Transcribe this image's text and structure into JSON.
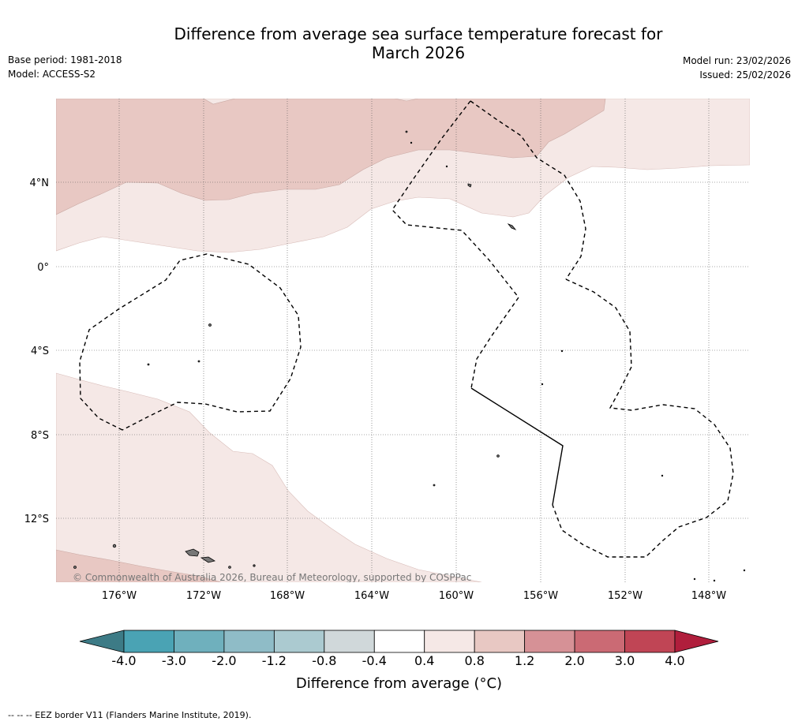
{
  "title_line1": "Difference from average sea surface temperature forecast for",
  "title_line2": "March 2026",
  "meta_left": {
    "base_period": "Base period: 1981-2018",
    "model": "Model: ACCESS-S2"
  },
  "meta_right": {
    "model_run": "Model run: 23/02/2026",
    "issued": "Issued: 25/02/2026"
  },
  "map": {
    "lat_labels": [
      "4°N",
      "0°",
      "4°S",
      "8°S",
      "12°S"
    ],
    "lon_labels": [
      "176°W",
      "172°W",
      "168°W",
      "164°W",
      "160°W",
      "156°W",
      "152°W",
      "148°W"
    ],
    "copyright": "© Commonwealth of Australia 2026, Bureau of Meteorology, supported by COSPPac",
    "colors": {
      "band_0_4": "#f5e8e6",
      "band_0_8": "#e8c8c3",
      "eez": "#000000"
    }
  },
  "colorbar": {
    "ticks": [
      "-4.0",
      "-3.0",
      "-2.0",
      "-1.2",
      "-0.8",
      "-0.4",
      "0.4",
      "0.8",
      "1.2",
      "2.0",
      "3.0",
      "4.0"
    ],
    "colors": [
      "#4aa3b4",
      "#6fb0bd",
      "#8fbcc7",
      "#abcad0",
      "#d0d8da",
      "#ffffff",
      "#f5e8e6",
      "#e8c8c3",
      "#d69196",
      "#cb6a74",
      "#c04555"
    ],
    "under_color": "#3d7b86",
    "over_color": "#b01e3c",
    "label": "Difference from average (°C)"
  },
  "footer": "--  --  -- EEZ border V11 (Flanders Marine Institute, 2019)."
}
